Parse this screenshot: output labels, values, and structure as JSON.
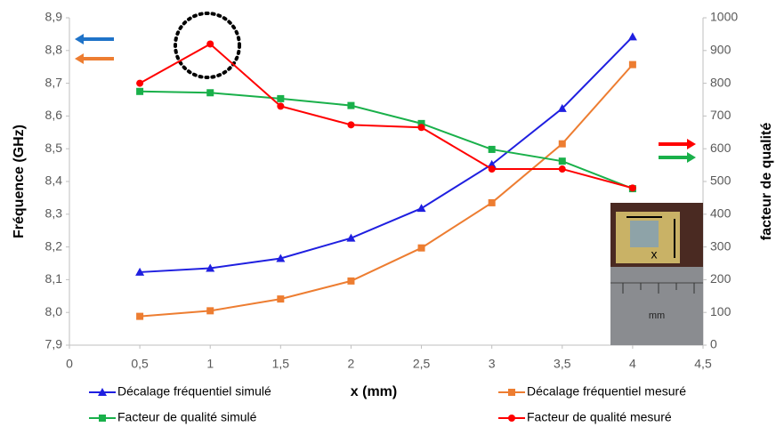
{
  "chart_data": {
    "type": "line",
    "y_label": "Fréquence (GHz)",
    "y2_label": "facteur de qualité",
    "x_label": "x (mm)",
    "x": [
      0.5,
      1,
      1.5,
      2,
      2.5,
      3,
      3.5,
      4
    ],
    "series": [
      {
        "name": "Décalage fréquentiel simulé",
        "color": "#1f1fe0",
        "marker": "triangle",
        "values": [
          8.123,
          8.135,
          8.165,
          8.227,
          8.318,
          8.452,
          8.623,
          8.842
        ]
      },
      {
        "name": "Décalage fréquentiel mesuré",
        "color": "#ed7d31",
        "marker": "square",
        "values": [
          7.988,
          8.005,
          8.041,
          8.096,
          8.197,
          8.335,
          8.515,
          8.757
        ]
      },
      {
        "name": "Facteur de qualité simulé",
        "color": "#19b04a",
        "marker": "square",
        "axis": "y2",
        "values": [
          775,
          771,
          753,
          732,
          677,
          598,
          562,
          478
        ]
      },
      {
        "name": "Facteur de qualité mesuré",
        "color": "#ff0000",
        "marker": "circle",
        "axis": "y2",
        "values": [
          800,
          920,
          730,
          673,
          665,
          538,
          538,
          480
        ]
      }
    ],
    "xlim": [
      0,
      4.5
    ],
    "xticks": [
      0,
      {
        "value": 0.5,
        "label": "0,5"
      },
      1,
      {
        "value": 1.5,
        "label": "1,5"
      },
      2,
      {
        "value": 2.5,
        "label": "2,5"
      },
      3,
      {
        "value": 3.5,
        "label": "3,5"
      },
      4,
      {
        "value": 4.5,
        "label": "4,5"
      }
    ],
    "ylim": [
      7.9,
      8.9
    ],
    "yticks": [
      {
        "value": 7.9,
        "label": "7,9"
      },
      {
        "value": 8.0,
        "label": "8,0"
      },
      {
        "value": 8.1,
        "label": "8,1"
      },
      {
        "value": 8.2,
        "label": "8,2"
      },
      {
        "value": 8.3,
        "label": "8,3"
      },
      {
        "value": 8.4,
        "label": "8,4"
      },
      {
        "value": 8.5,
        "label": "8,5"
      },
      {
        "value": 8.6,
        "label": "8,6"
      },
      {
        "value": 8.7,
        "label": "8,7"
      },
      {
        "value": 8.8,
        "label": "8,8"
      },
      {
        "value": 8.9,
        "label": "8,9"
      }
    ],
    "y2lim": [
      0,
      1000
    ],
    "y2ticks": [
      0,
      100,
      200,
      300,
      400,
      500,
      600,
      700,
      800,
      900,
      1000
    ],
    "grid": false,
    "legend": "bottom",
    "annotations": [
      "x",
      "mm"
    ]
  }
}
